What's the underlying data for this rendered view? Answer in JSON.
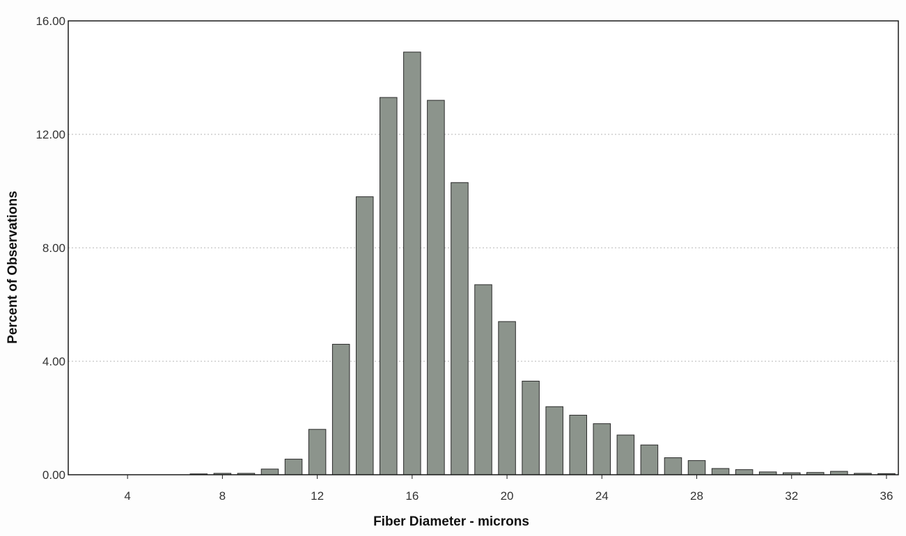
{
  "chart_data": {
    "type": "bar",
    "title": "",
    "xlabel": "Fiber Diameter - microns",
    "ylabel": "Percent of Observations",
    "xlim": [
      1.5,
      36.5
    ],
    "ylim": [
      0,
      16
    ],
    "grid": true,
    "legend": "none",
    "x_ticks": [
      4,
      8,
      12,
      16,
      20,
      24,
      28,
      32,
      36
    ],
    "x_tick_labels": [
      "4",
      "8",
      "12",
      "16",
      "20",
      "24",
      "28",
      "32",
      "36"
    ],
    "y_ticks": [
      0,
      4,
      8,
      12,
      16
    ],
    "y_tick_labels": [
      "0.00",
      "4.00",
      "8.00",
      "12.00",
      "16.00"
    ],
    "bar_color": "#8c948c",
    "bar_edge_color": "#2a2a2a",
    "series": [
      {
        "x": [
          7,
          8,
          9,
          10,
          11,
          12,
          13,
          14,
          15,
          16,
          17,
          18,
          19,
          20,
          21,
          22,
          23,
          24,
          25,
          26,
          27,
          28,
          29,
          30,
          31,
          32,
          33,
          34,
          35,
          36
        ],
        "values": [
          0.03,
          0.05,
          0.05,
          0.2,
          0.55,
          1.6,
          4.6,
          9.8,
          13.3,
          14.9,
          13.2,
          10.3,
          6.7,
          5.4,
          3.3,
          2.4,
          2.1,
          1.8,
          1.4,
          1.05,
          0.6,
          0.5,
          0.22,
          0.18,
          0.1,
          0.07,
          0.08,
          0.12,
          0.05,
          0.04
        ]
      }
    ]
  }
}
